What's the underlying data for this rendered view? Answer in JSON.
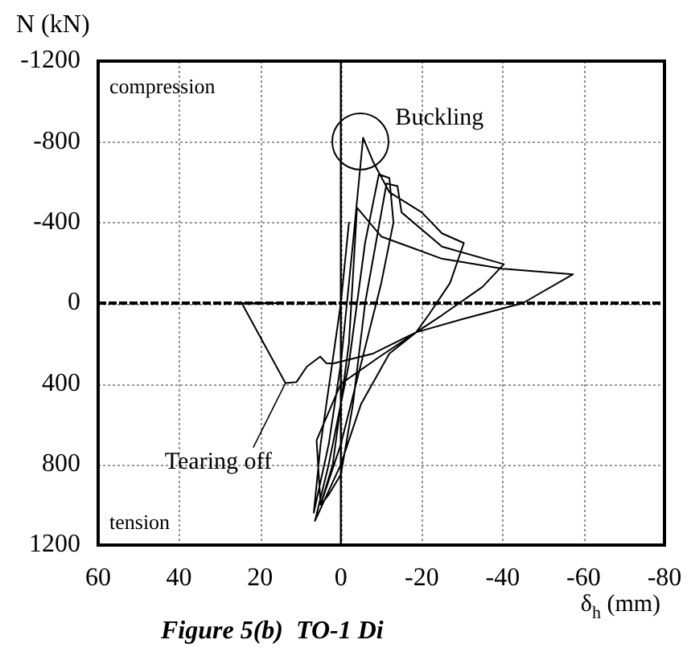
{
  "chart_data": {
    "type": "line",
    "xlabel": "δ$_{h}$ (mm)",
    "ylabel": "N (kN)",
    "xlim": [
      60,
      -80
    ],
    "xticks": [
      60,
      40,
      20,
      0,
      -20,
      -40,
      -60,
      -80
    ],
    "ylim": [
      1200,
      -1200
    ],
    "yticks": [
      -1200,
      -800,
      -400,
      0,
      400,
      800,
      1200
    ],
    "grid": true,
    "legend": false,
    "marker": "none",
    "line_style": "solid",
    "ref_lines": [
      {
        "axis": "y",
        "value": 0,
        "line_style": "dashed"
      },
      {
        "axis": "x",
        "value": 0,
        "line_style": "solid"
      }
    ],
    "annotations": [
      "compression",
      "tension",
      {
        "text": "Buckling",
        "x": -5.5,
        "y": -820
      },
      {
        "text": "Tearing off",
        "x": 13.7,
        "y": 397
      },
      "Figure 5(b)  TO-1 Di"
    ],
    "series": [
      {
        "color": "#000000",
        "x": [
          0,
          -2,
          0,
          5,
          6.7,
          3,
          0,
          -3,
          -5.5,
          -8,
          -12,
          -20,
          -25,
          -30.4,
          -27,
          -22,
          -18.6,
          -12,
          -5,
          0,
          6.4,
          3,
          -2,
          -6,
          -9.4,
          -12,
          -13,
          -10,
          -5,
          0,
          5,
          3,
          0,
          -3,
          -6,
          -11.3,
          -14,
          -15,
          -25,
          -40.3,
          -35,
          -25,
          -18.6,
          -10,
          0,
          6,
          5,
          2,
          -2,
          -4,
          -10,
          -25,
          -40,
          -57.4,
          -45,
          -30,
          -18.6,
          -8,
          2,
          3.6,
          5.1,
          8.4,
          11,
          13.7,
          24.5,
          14.3
        ],
        "values": [
          0,
          -400,
          0,
          700,
          1040,
          700,
          300,
          -300,
          -820,
          -700,
          -550,
          -450,
          -346,
          -298,
          -100,
          50,
          145,
          250,
          500,
          800,
          1080,
          800,
          300,
          -300,
          -639,
          -620,
          -400,
          -100,
          300,
          700,
          1000,
          950,
          850,
          500,
          0,
          -593,
          -580,
          -450,
          -280,
          -193,
          -80,
          60,
          145,
          260,
          400,
          680,
          1000,
          800,
          200,
          -473,
          -330,
          -220,
          -170,
          -143,
          0,
          80,
          145,
          250,
          300,
          298,
          265,
          315,
          392,
          397,
          0,
          0
        ]
      }
    ]
  }
}
